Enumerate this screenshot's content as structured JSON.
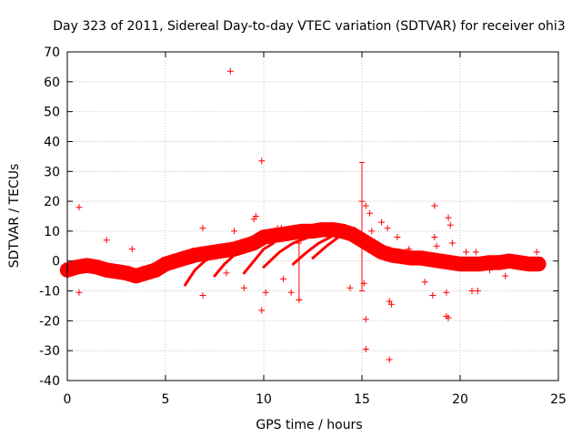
{
  "chart_data": {
    "type": "scatter",
    "title": "Day 323 of 2011, Sidereal Day-to-day VTEC variation (SDTVAR) for receiver ohi3",
    "xlabel": "GPS time / hours",
    "ylabel": "SDTVAR / TECUs",
    "xlim": [
      0,
      25
    ],
    "ylim": [
      -40,
      70
    ],
    "xticks": [
      0,
      5,
      10,
      15,
      20,
      25
    ],
    "yticks": [
      -40,
      -30,
      -20,
      -10,
      0,
      10,
      20,
      30,
      40,
      50,
      60,
      70
    ],
    "grid": true,
    "marker": "+",
    "color": "#ff0000",
    "series": [
      {
        "name": "SDTVAR",
        "band_points": [
          [
            0,
            -3
          ],
          [
            0.5,
            -2
          ],
          [
            1,
            -1.5
          ],
          [
            1.5,
            -2
          ],
          [
            2,
            -3
          ],
          [
            2.5,
            -3.5
          ],
          [
            3,
            -4
          ],
          [
            3.5,
            -5
          ],
          [
            4,
            -4
          ],
          [
            4.5,
            -3
          ],
          [
            5,
            -1
          ],
          [
            5.5,
            0
          ],
          [
            6,
            1
          ],
          [
            6.5,
            2
          ],
          [
            7,
            2.5
          ],
          [
            7.5,
            3
          ],
          [
            8,
            3.5
          ],
          [
            8.5,
            4
          ],
          [
            9,
            5
          ],
          [
            9.5,
            6
          ],
          [
            10,
            8
          ],
          [
            10.5,
            8.5
          ],
          [
            11,
            9
          ],
          [
            11.5,
            9.5
          ],
          [
            12,
            10
          ],
          [
            12.5,
            10
          ],
          [
            13,
            10.5
          ],
          [
            13.5,
            10.5
          ],
          [
            14,
            10
          ],
          [
            14.5,
            9
          ],
          [
            15,
            7
          ],
          [
            15.5,
            5
          ],
          [
            16,
            3
          ],
          [
            16.5,
            2
          ],
          [
            17,
            1.5
          ],
          [
            17.5,
            1
          ],
          [
            18,
            1
          ],
          [
            18.5,
            0.5
          ],
          [
            19,
            0
          ],
          [
            19.5,
            -0.5
          ],
          [
            20,
            -1
          ],
          [
            20.5,
            -1
          ],
          [
            21,
            -1
          ],
          [
            21.5,
            -0.5
          ],
          [
            22,
            -0.5
          ],
          [
            22.5,
            0
          ],
          [
            23,
            -0.5
          ],
          [
            23.5,
            -1
          ],
          [
            24,
            -1
          ]
        ],
        "band_width": 5,
        "arcs": [
          [
            [
              4.5,
              -5
            ],
            [
              5.0,
              -1
            ],
            [
              5.5,
              2
            ],
            [
              6.0,
              3
            ]
          ],
          [
            [
              6.0,
              -8
            ],
            [
              6.5,
              -3
            ],
            [
              7.0,
              0
            ],
            [
              7.5,
              2
            ]
          ],
          [
            [
              7.5,
              -5
            ],
            [
              8.0,
              -1
            ],
            [
              8.5,
              2
            ],
            [
              9.0,
              4
            ]
          ],
          [
            [
              9.0,
              -4
            ],
            [
              9.5,
              0
            ],
            [
              10.0,
              4
            ],
            [
              10.5,
              6
            ]
          ],
          [
            [
              10.0,
              -2
            ],
            [
              10.8,
              3
            ],
            [
              11.5,
              6
            ],
            [
              12.3,
              8
            ]
          ],
          [
            [
              11.5,
              -1
            ],
            [
              12.2,
              3
            ],
            [
              12.8,
              6
            ],
            [
              13.4,
              8
            ]
          ],
          [
            [
              12.5,
              1
            ],
            [
              13.2,
              5
            ],
            [
              13.8,
              8
            ],
            [
              14.5,
              10
            ]
          ]
        ],
        "outliers": [
          [
            0.6,
            18
          ],
          [
            2,
            7
          ],
          [
            0.6,
            -10.5
          ],
          [
            3.3,
            4
          ],
          [
            6.9,
            11
          ],
          [
            6.9,
            -11.5
          ],
          [
            8.1,
            -4
          ],
          [
            8.3,
            63.5
          ],
          [
            8.5,
            10
          ],
          [
            9.0,
            -9
          ],
          [
            9.5,
            14
          ],
          [
            9.6,
            15
          ],
          [
            9.9,
            33.5
          ],
          [
            9.9,
            -16.5
          ],
          [
            10.1,
            -10.5
          ],
          [
            10.7,
            11
          ],
          [
            10.9,
            11
          ],
          [
            11.0,
            -6
          ],
          [
            11.4,
            -10.5
          ],
          [
            11.8,
            -13
          ],
          [
            14.4,
            -9
          ],
          [
            15.0,
            20
          ],
          [
            15.1,
            -7.5
          ],
          [
            15.2,
            -19.5
          ],
          [
            15.2,
            -29.5
          ],
          [
            15.2,
            18.5
          ],
          [
            15.4,
            16
          ],
          [
            15.5,
            10
          ],
          [
            16.0,
            13
          ],
          [
            16.3,
            11
          ],
          [
            16.4,
            -13.5
          ],
          [
            16.4,
            -33
          ],
          [
            16.5,
            -14.5
          ],
          [
            16.8,
            8
          ],
          [
            17.4,
            4
          ],
          [
            18.2,
            -7
          ],
          [
            18.6,
            -11.5
          ],
          [
            18.7,
            18.5
          ],
          [
            18.7,
            8
          ],
          [
            18.8,
            5
          ],
          [
            19.3,
            -18.5
          ],
          [
            19.3,
            -10.5
          ],
          [
            19.4,
            -19
          ],
          [
            19.4,
            14.5
          ],
          [
            19.5,
            12
          ],
          [
            19.6,
            6
          ],
          [
            20.3,
            3
          ],
          [
            20.6,
            -10
          ],
          [
            20.8,
            3
          ],
          [
            20.9,
            -10
          ],
          [
            21.5,
            -3
          ],
          [
            22.3,
            -5
          ],
          [
            23.9,
            3
          ]
        ],
        "errorbars": [
          [
            15.0,
            -10,
            33
          ],
          [
            11.8,
            -13,
            6
          ]
        ]
      }
    ]
  }
}
